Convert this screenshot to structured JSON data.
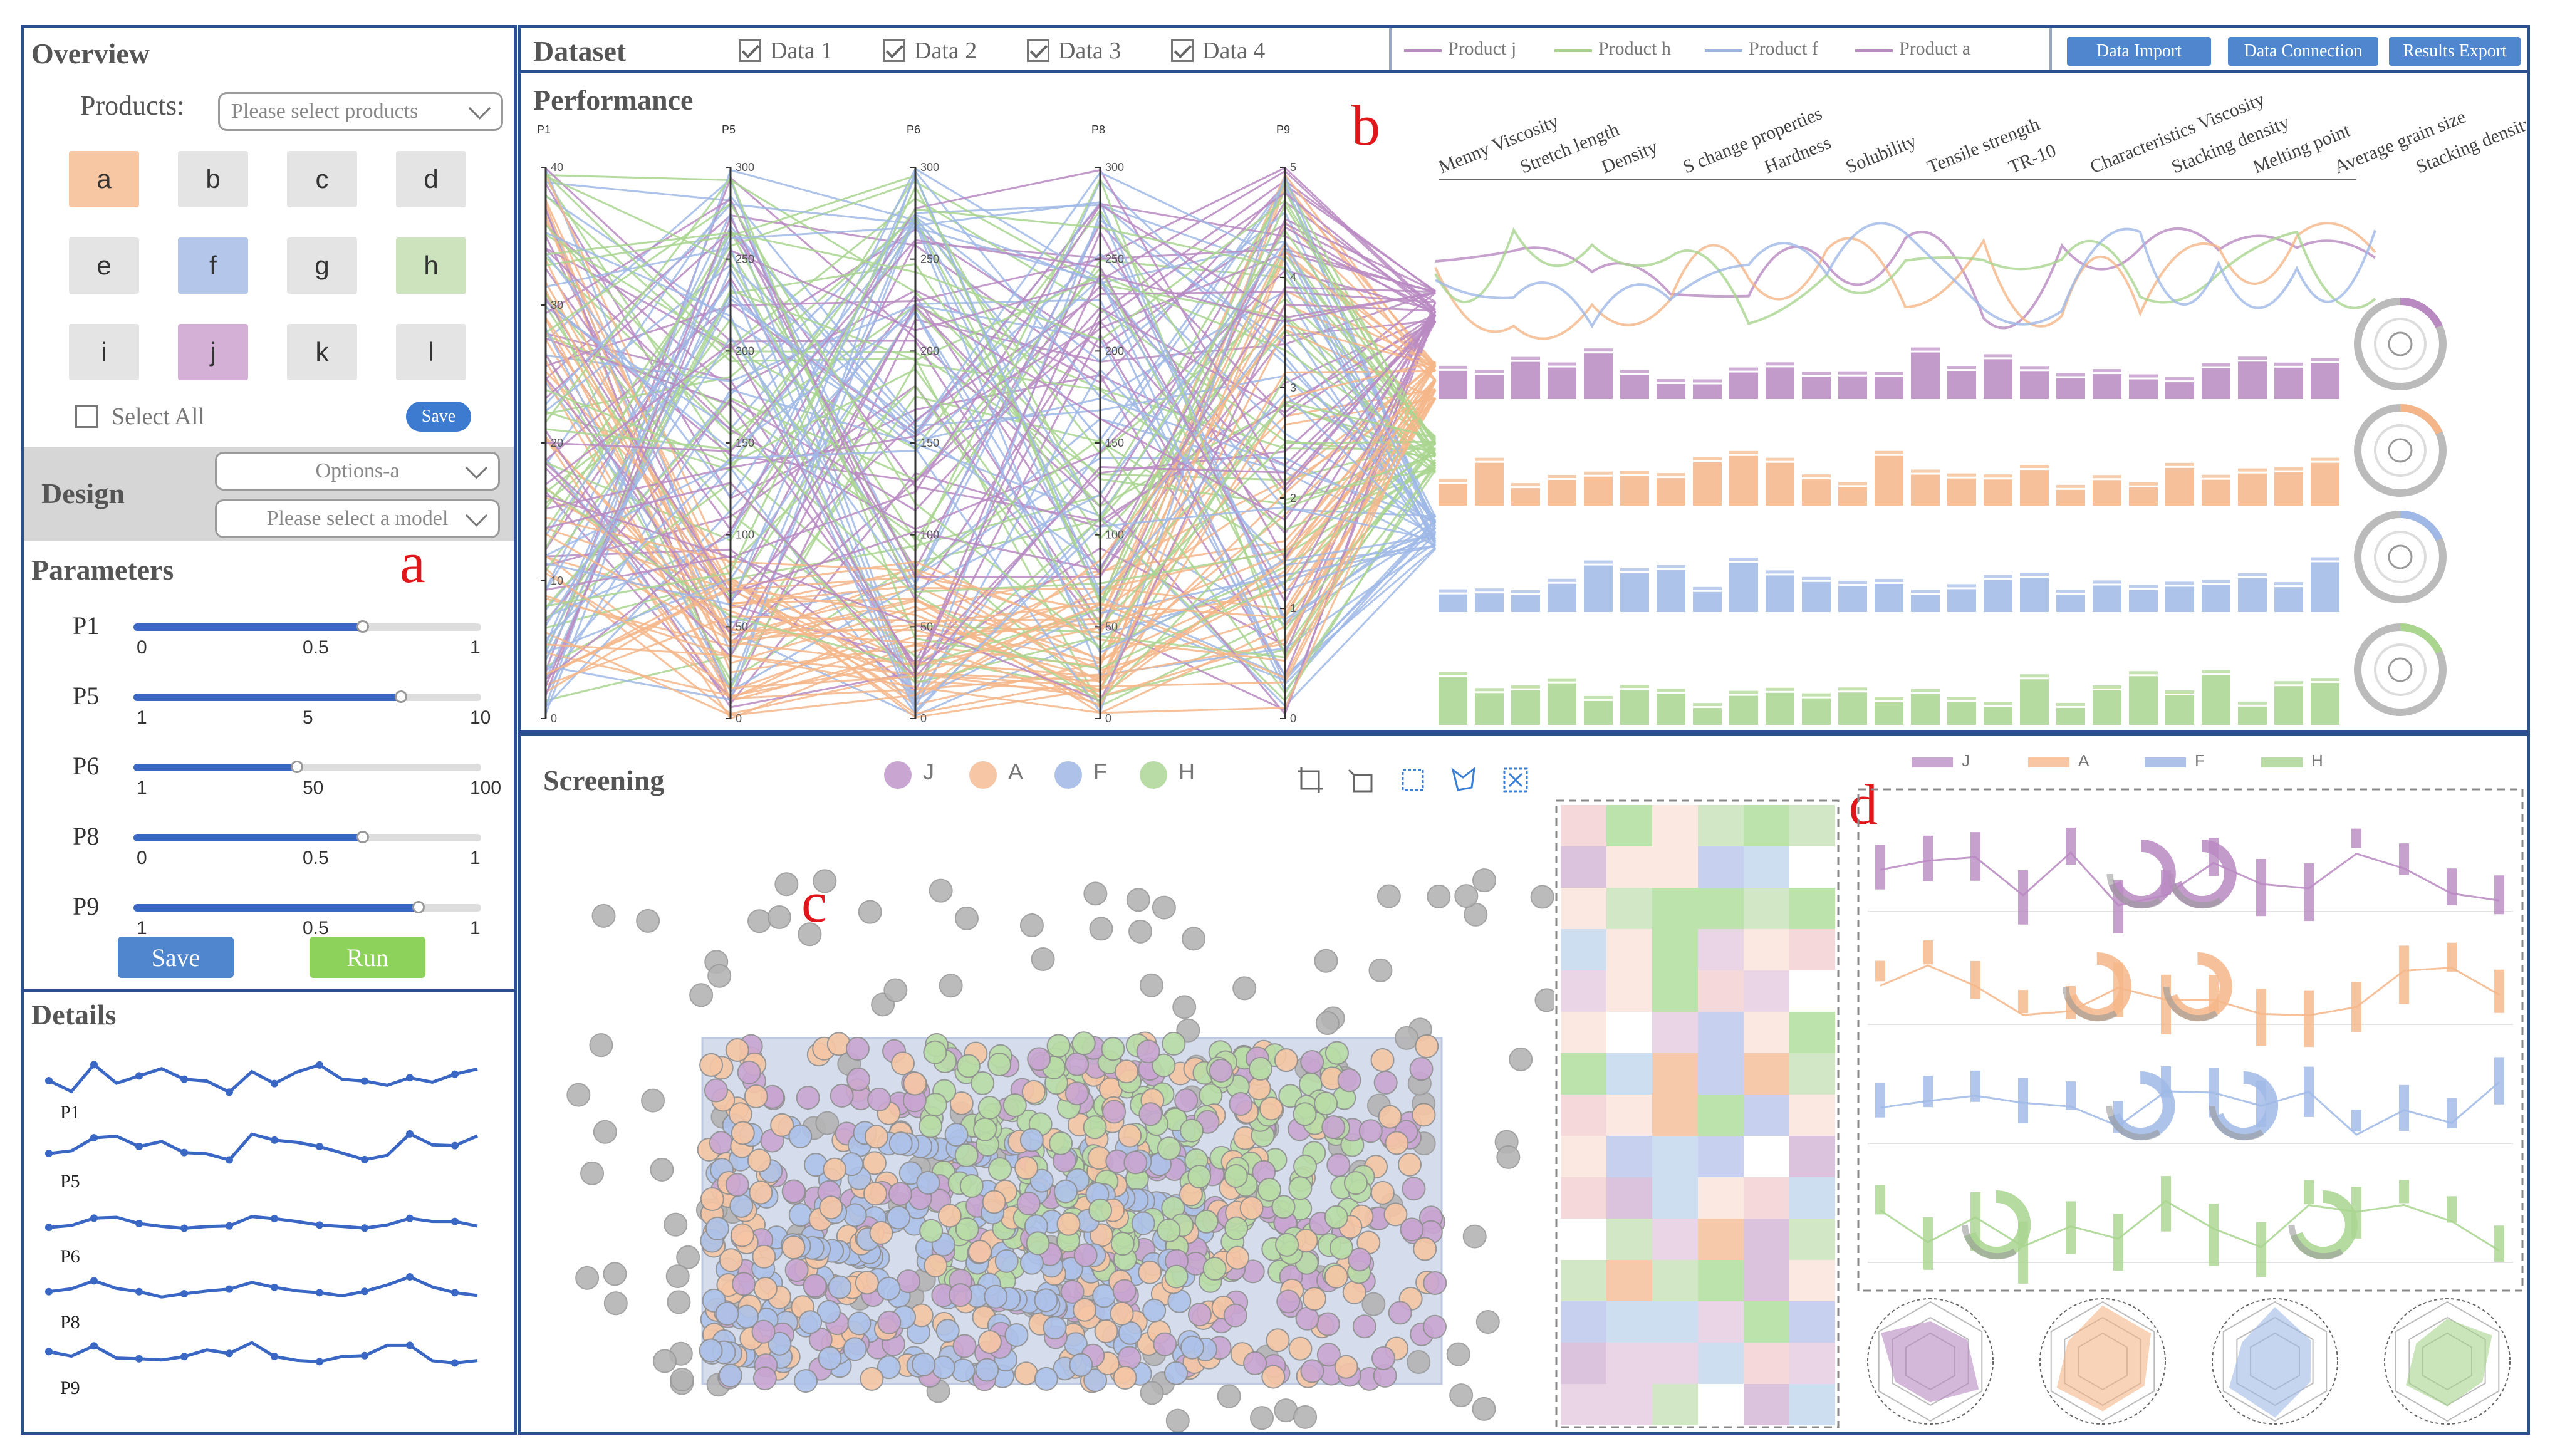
{
  "overview": {
    "title": "Overview",
    "products_label": "Products:",
    "products_placeholder": "Please select products",
    "products": [
      {
        "label": "a",
        "color": "#f7c7a4"
      },
      {
        "label": "b",
        "color": "#e4e4e4"
      },
      {
        "label": "c",
        "color": "#e4e4e4"
      },
      {
        "label": "d",
        "color": "#e4e4e4"
      },
      {
        "label": "e",
        "color": "#e4e4e4"
      },
      {
        "label": "f",
        "color": "#b4c7ea"
      },
      {
        "label": "g",
        "color": "#e4e4e4"
      },
      {
        "label": "h",
        "color": "#cde3bd"
      },
      {
        "label": "i",
        "color": "#e4e4e4"
      },
      {
        "label": "j",
        "color": "#d4afd6"
      },
      {
        "label": "k",
        "color": "#e4e4e4"
      },
      {
        "label": "l",
        "color": "#e4e4e4"
      }
    ],
    "select_all": "Select All",
    "save": "Save"
  },
  "design": {
    "title": "Design",
    "option_value": "Options-a",
    "model_placeholder": "Please select a model"
  },
  "parameters": {
    "title": "Parameters",
    "items": [
      {
        "name": "P1",
        "min": "0",
        "mid": "0.5",
        "max": "1",
        "fill": 0.66
      },
      {
        "name": "P5",
        "min": "1",
        "mid": "5",
        "max": "10",
        "fill": 0.77
      },
      {
        "name": "P6",
        "min": "1",
        "mid": "50",
        "max": "100",
        "fill": 0.47
      },
      {
        "name": "P8",
        "min": "0",
        "mid": "0.5",
        "max": "1",
        "fill": 0.66
      },
      {
        "name": "P9",
        "min": "1",
        "mid": "0.5",
        "max": "1",
        "fill": 0.82
      }
    ],
    "save": "Save",
    "run": "Run"
  },
  "details": {
    "title": "Details",
    "series": [
      "P1",
      "P5",
      "P6",
      "P8",
      "P9"
    ]
  },
  "dataset": {
    "title": "Dataset",
    "items": [
      "Data 1",
      "Data 2",
      "Data 3",
      "Data 4"
    ],
    "legend": [
      {
        "label": "Product j",
        "color": "#b98ac2"
      },
      {
        "label": "Product h",
        "color": "#a8d48e"
      },
      {
        "label": "Product f",
        "color": "#9bb5e3"
      },
      {
        "label": "Product a",
        "color": "#b98ac2"
      }
    ],
    "buttons": [
      "Data Import",
      "Data Connection",
      "Results Export"
    ]
  },
  "performance": {
    "title": "Performance",
    "axes": [
      {
        "name": "P1",
        "ticks": [
          "40",
          "30",
          "20",
          "10",
          "0"
        ]
      },
      {
        "name": "P5",
        "ticks": [
          "300",
          "250",
          "200",
          "150",
          "100",
          "50",
          "0"
        ]
      },
      {
        "name": "P6",
        "ticks": [
          "300",
          "250",
          "200",
          "150",
          "100",
          "50",
          "0"
        ]
      },
      {
        "name": "P8",
        "ticks": [
          "300",
          "250",
          "200",
          "150",
          "100",
          "50",
          "0"
        ]
      },
      {
        "name": "P9",
        "ticks": [
          "5",
          "4",
          "3",
          "2",
          "1",
          "0"
        ]
      }
    ],
    "properties": [
      "Menny Viscosity",
      "Stretch length",
      "Density",
      "S change properties",
      "Hardness",
      "Solubility",
      "Tensile strength",
      "TR-10",
      "Characteristics Viscosity",
      "Stacking density",
      "Melting point",
      "Average grain size",
      "Stacking density"
    ]
  },
  "screening": {
    "title": "Screening",
    "legend": [
      {
        "label": "J",
        "color": "#c9a6d2"
      },
      {
        "label": "A",
        "color": "#f6c6a5"
      },
      {
        "label": "F",
        "color": "#aec2e9"
      },
      {
        "label": "H",
        "color": "#b9dca7"
      }
    ]
  },
  "legend_d": [
    {
      "label": "J",
      "color": "#c9a6d2"
    },
    {
      "label": "A",
      "color": "#f6c6a5"
    },
    {
      "label": "F",
      "color": "#aec2e9"
    },
    {
      "label": "H",
      "color": "#b9dca7"
    }
  ],
  "markers": {
    "a": "a",
    "b": "b",
    "c": "c",
    "d": "d"
  },
  "colors": {
    "purple": "#b98ac2",
    "orange": "#f4b688",
    "blue": "#9fb8e6",
    "green": "#a9d58f",
    "panel_border": "#2e4f8f",
    "accent_button": "#4f86cd",
    "run_button": "#8dd25a"
  }
}
